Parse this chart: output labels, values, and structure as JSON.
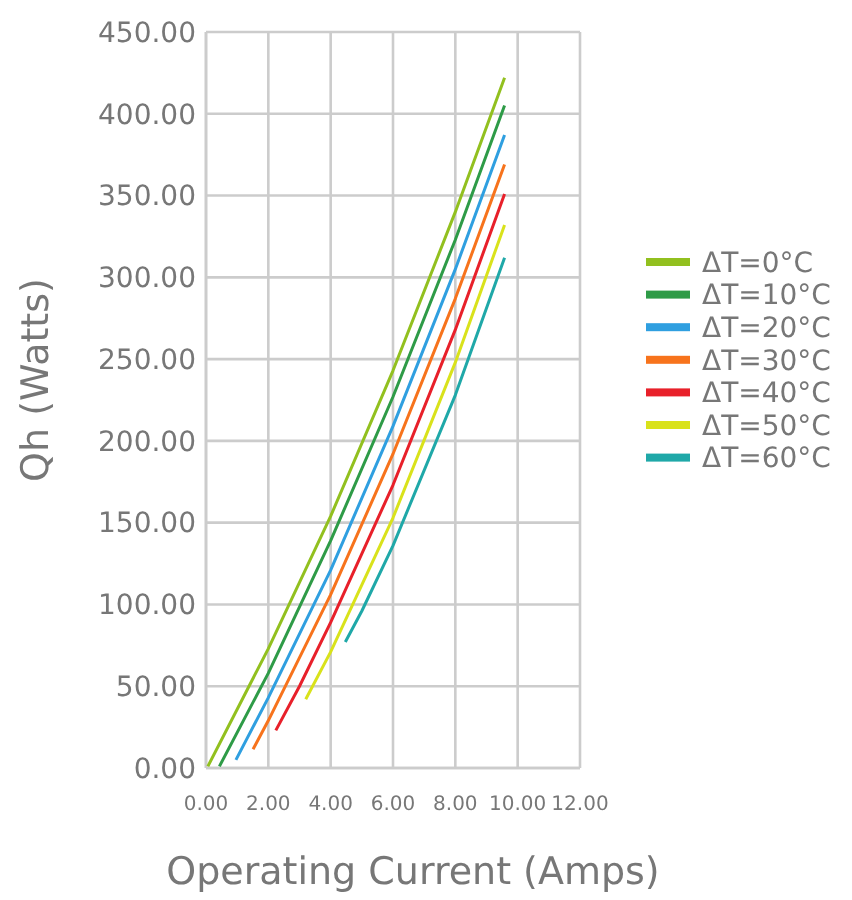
{
  "chart_data": {
    "type": "line",
    "xlabel": "Operating Current (Amps)",
    "ylabel": "Qh (Watts)",
    "xlim": [
      0,
      12
    ],
    "ylim": [
      0,
      450
    ],
    "xticks": [
      {
        "value": 0,
        "label": "0.00"
      },
      {
        "value": 2,
        "label": "2.00"
      },
      {
        "value": 4,
        "label": "4.00"
      },
      {
        "value": 6,
        "label": "6.00"
      },
      {
        "value": 8,
        "label": "8.00"
      },
      {
        "value": 10,
        "label": "10.00"
      },
      {
        "value": 12,
        "label": "12.00"
      }
    ],
    "yticks": [
      {
        "value": 0,
        "label": "0.00"
      },
      {
        "value": 50,
        "label": "50.00"
      },
      {
        "value": 100,
        "label": "100.00"
      },
      {
        "value": 150,
        "label": "150.00"
      },
      {
        "value": 200,
        "label": "200.00"
      },
      {
        "value": 250,
        "label": "250.00"
      },
      {
        "value": 300,
        "label": "300.00"
      },
      {
        "value": 350,
        "label": "350.00"
      },
      {
        "value": 400,
        "label": "400.00"
      },
      {
        "value": 450,
        "label": "450.00"
      }
    ],
    "grid": true,
    "legend": "right",
    "marker": "none",
    "line_style": "solid",
    "series": [
      {
        "name": "ΔT=0°C",
        "color": "#92c01f",
        "x": [
          0.06,
          2,
          4,
          6,
          8,
          9.58
        ],
        "values": [
          1,
          73,
          154,
          243,
          340,
          422
        ]
      },
      {
        "name": "ΔT=10°C",
        "color": "#2e9b47",
        "x": [
          0.43,
          2,
          4,
          6,
          8,
          9.58
        ],
        "values": [
          1,
          58,
          139,
          227,
          323,
          405
        ]
      },
      {
        "name": "ΔT=20°C",
        "color": "#2f9fe0",
        "x": [
          0.96,
          2,
          4,
          6,
          8,
          9.58
        ],
        "values": [
          5,
          43,
          121,
          209,
          305,
          387
        ]
      },
      {
        "name": "ΔT=30°C",
        "color": "#f7731c",
        "x": [
          1.51,
          2,
          4,
          6,
          8,
          9.58
        ],
        "values": [
          11.5,
          29,
          106,
          192,
          287,
          369
        ]
      },
      {
        "name": "ΔT=40°C",
        "color": "#e8202a",
        "x": [
          2.24,
          3,
          4,
          6,
          8,
          9.58
        ],
        "values": [
          23,
          50,
          89,
          173,
          268,
          351
        ]
      },
      {
        "name": "ΔT=50°C",
        "color": "#d9e21b",
        "x": [
          3.2,
          4,
          6,
          8,
          9.58
        ],
        "values": [
          42,
          71,
          153,
          248,
          332
        ]
      },
      {
        "name": "ΔT=60°C",
        "color": "#1fa8a8",
        "x": [
          4.47,
          5,
          6,
          8,
          9.58
        ],
        "values": [
          77,
          96,
          136,
          228,
          312
        ]
      }
    ]
  }
}
